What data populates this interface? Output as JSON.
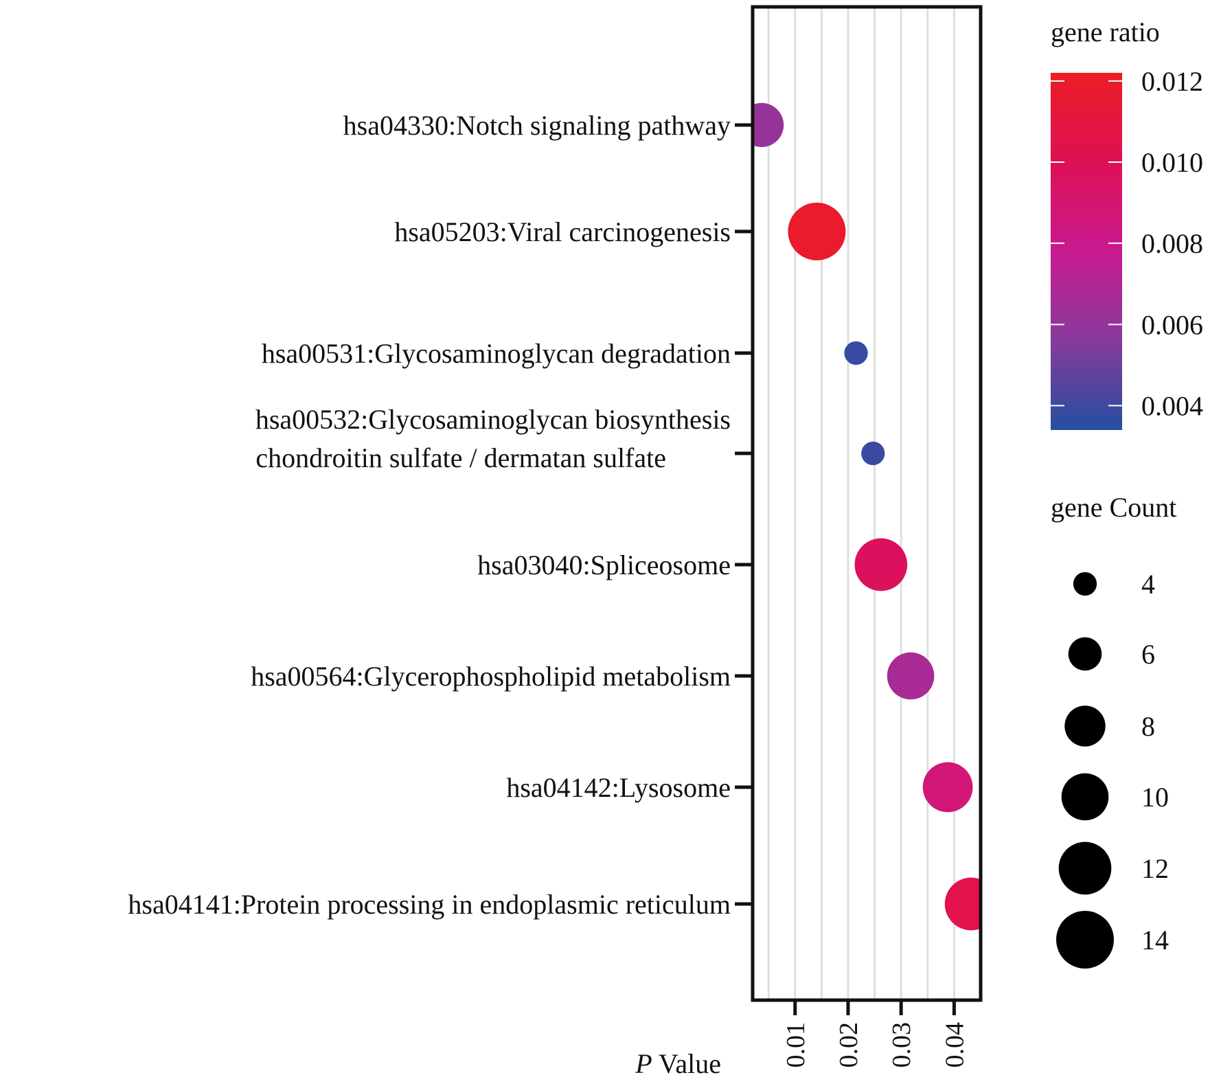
{
  "chart_data": {
    "type": "scatter",
    "title": "",
    "xlabel_italic": "P",
    "xlabel_rest": " Value",
    "xlim": [
      0.002,
      0.045
    ],
    "xticks": [
      0.01,
      0.02,
      0.03,
      0.04
    ],
    "tick_labels": [
      "0.01",
      "0.02",
      "0.03",
      "0.04"
    ],
    "grid": "vertical",
    "pathways": [
      {
        "lines": [
          "hsa04330:Notch signaling pathway"
        ],
        "pvalue": 0.0037,
        "count": 9,
        "gene_ratio": 0.0061
      },
      {
        "lines": [
          "hsa05203:Viral carcinogenesis"
        ],
        "pvalue": 0.0141,
        "count": 14,
        "gene_ratio": 0.0118
      },
      {
        "lines": [
          "hsa00531:Glycosaminoglycan degradation"
        ],
        "pvalue": 0.0215,
        "count": 4,
        "gene_ratio": 0.0038
      },
      {
        "lines": [
          "hsa00532:Glycosaminoglycan biosynthesis",
          "chondroitin sulfate / dermatan sulfate"
        ],
        "pvalue": 0.0247,
        "count": 4,
        "gene_ratio": 0.0039
      },
      {
        "lines": [
          "hsa03040:Spliceosome"
        ],
        "pvalue": 0.0262,
        "count": 12,
        "gene_ratio": 0.0097
      },
      {
        "lines": [
          "hsa00564:Glycerophospholipid metabolism"
        ],
        "pvalue": 0.0318,
        "count": 10,
        "gene_ratio": 0.0067
      },
      {
        "lines": [
          "hsa04142:Lysosome"
        ],
        "pvalue": 0.0388,
        "count": 11,
        "gene_ratio": 0.0087
      },
      {
        "lines": [
          "hsa04141:Protein processing in endoplasmic reticulum"
        ],
        "pvalue": 0.0432,
        "count": 12,
        "gene_ratio": 0.0104
      }
    ],
    "color_legend": {
      "title": "gene ratio",
      "min": 0.0034,
      "max": 0.0122,
      "ticks": [
        0.012,
        0.01,
        0.008,
        0.006,
        0.004
      ],
      "tick_labels": [
        "0.012",
        "0.010",
        "0.008",
        "0.006",
        "0.004"
      ],
      "colors": [
        "#ec1d24",
        "#de1055",
        "#c81a8f",
        "#873a9b",
        "#244fa2"
      ]
    },
    "size_legend": {
      "title": "gene Count",
      "values": [
        4,
        6,
        8,
        10,
        12,
        14
      ],
      "labels": [
        "4",
        "6",
        "8",
        "10",
        "12",
        "14"
      ]
    }
  }
}
